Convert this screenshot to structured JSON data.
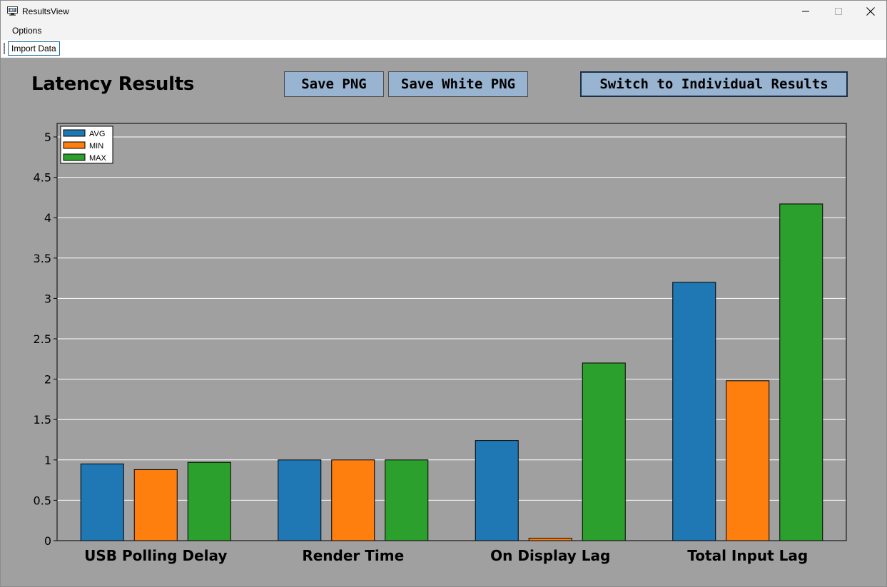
{
  "window": {
    "title": "ResultsView",
    "icon": "app-monitor-icon"
  },
  "menu": {
    "options_label": "Options"
  },
  "toolbar": {
    "import_label": "Import Data"
  },
  "page": {
    "title": "Latency Results",
    "save_png_label": "Save PNG",
    "save_white_png_label": "Save White PNG",
    "switch_label": "Switch to Individual Results"
  },
  "colors": {
    "background": "#a0a0a0",
    "avg": "#1f77b4",
    "min": "#ff7f0e",
    "max": "#2ca02c",
    "button": "#99b4d1"
  },
  "chart_data": {
    "type": "bar",
    "title": "",
    "xlabel": "",
    "ylabel": "",
    "categories": [
      "USB Polling Delay",
      "Render Time",
      "On Display Lag",
      "Total Input Lag"
    ],
    "series": [
      {
        "name": "AVG",
        "color": "#1f77b4",
        "values": [
          0.95,
          1.0,
          1.24,
          3.2
        ]
      },
      {
        "name": "MIN",
        "color": "#ff7f0e",
        "values": [
          0.88,
          1.0,
          0.03,
          1.98
        ]
      },
      {
        "name": "MAX",
        "color": "#2ca02c",
        "values": [
          0.97,
          1.0,
          2.2,
          4.17
        ]
      }
    ],
    "ylim": [
      0,
      5.2
    ],
    "yticks": [
      0,
      0.5,
      1,
      1.5,
      2,
      2.5,
      3,
      3.5,
      4,
      4.5,
      5
    ],
    "ytick_labels": [
      "0",
      "0.5",
      "1",
      "1.5",
      "2",
      "2.5",
      "3",
      "3.5",
      "4",
      "4.5",
      "5"
    ],
    "grid": true,
    "legend_position": "top-left"
  }
}
